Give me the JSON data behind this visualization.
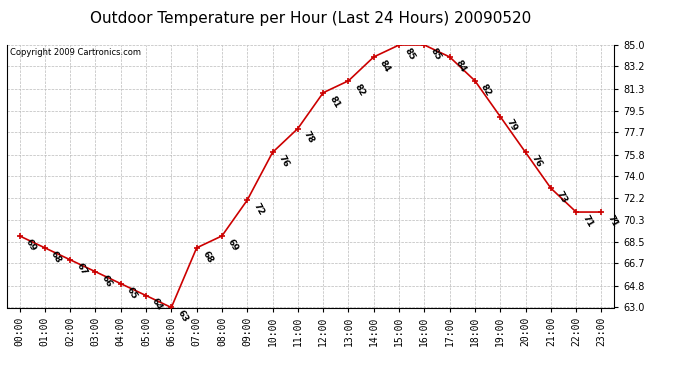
{
  "title": "Outdoor Temperature per Hour (Last 24 Hours) 20090520",
  "copyright_text": "Copyright 2009 Cartronics.com",
  "hours": [
    "00:00",
    "01:00",
    "02:00",
    "03:00",
    "04:00",
    "05:00",
    "06:00",
    "07:00",
    "08:00",
    "09:00",
    "10:00",
    "11:00",
    "12:00",
    "13:00",
    "14:00",
    "15:00",
    "16:00",
    "17:00",
    "18:00",
    "19:00",
    "20:00",
    "21:00",
    "22:00",
    "23:00"
  ],
  "temps": [
    69,
    68,
    67,
    66,
    65,
    64,
    63,
    68,
    69,
    72,
    76,
    78,
    81,
    82,
    84,
    85,
    85,
    84,
    82,
    79,
    76,
    73,
    71,
    71
  ],
  "y_ticks": [
    63.0,
    64.8,
    66.7,
    68.5,
    70.3,
    72.2,
    74.0,
    75.8,
    77.7,
    79.5,
    81.3,
    83.2,
    85.0
  ],
  "ylim": [
    63.0,
    85.0
  ],
  "line_color": "#cc0000",
  "marker_color": "#cc0000",
  "bg_color": "#ffffff",
  "grid_color": "#bbbbbb",
  "title_fontsize": 11,
  "label_fontsize": 6.5,
  "tick_fontsize": 7,
  "copyright_fontsize": 6
}
